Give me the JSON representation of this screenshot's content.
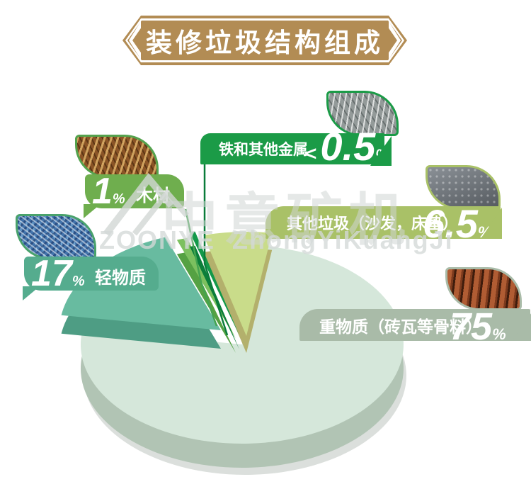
{
  "title_banner": {
    "text": "装修垃圾结构组成",
    "bg_color": "#b28c54",
    "text_color": "#ffffff"
  },
  "watermark": {
    "brand_cn": "中意矿机",
    "brand_en": "ZOONYE",
    "brand_pinyin": "ZhongYiKuangJi"
  },
  "chart_data": {
    "type": "pie",
    "title": "装修垃圾结构组成",
    "style": "3d-exploded",
    "legend_position": "callout-banners",
    "slices": [
      {
        "id": "metal",
        "label": "铁和其他金属",
        "prefix": "<",
        "value_display": "0.5",
        "unit": "%",
        "percent": 0.5,
        "banner_color": "#1b9b47",
        "top_color": "#13994a",
        "side_color": "#0b7e3a",
        "photo": "scrap-metal"
      },
      {
        "id": "wood",
        "label": "木材",
        "prefix": "",
        "value_display": "1",
        "unit": "%",
        "percent": 1,
        "banner_color": "#6fae4e",
        "top_color": "#7cc05f",
        "side_color": "#55a143",
        "photo": "wood-chips"
      },
      {
        "id": "other",
        "label": "其他垃圾（沙发，床垫）",
        "prefix": "",
        "value_display": "6.5",
        "unit": "%",
        "percent": 6.5,
        "banner_color": "#a9c167",
        "top_color": "#c9dc8a",
        "side_color": "#b3b06c",
        "photo": "mattress"
      },
      {
        "id": "light",
        "label": "轻物质",
        "prefix": "",
        "value_display": "17",
        "unit": "%",
        "percent": 17,
        "banner_color": "#55ac8e",
        "top_color": "#68bba0",
        "side_color": "#4e9d84",
        "photo": "plastic-shreds"
      },
      {
        "id": "heavy",
        "label": "重物质（砖瓦等骨料）",
        "prefix": "",
        "value_display": "75",
        "unit": "%",
        "percent": 75,
        "banner_color": "#a9bba8",
        "top_color": "#d5e7da",
        "side_color": "#b1c4b4",
        "photo": "bricks"
      }
    ],
    "connector_colors": {
      "metal": "#0a7c3a",
      "wood": "#44a350"
    },
    "shadow_color": "#dbdfdc"
  }
}
